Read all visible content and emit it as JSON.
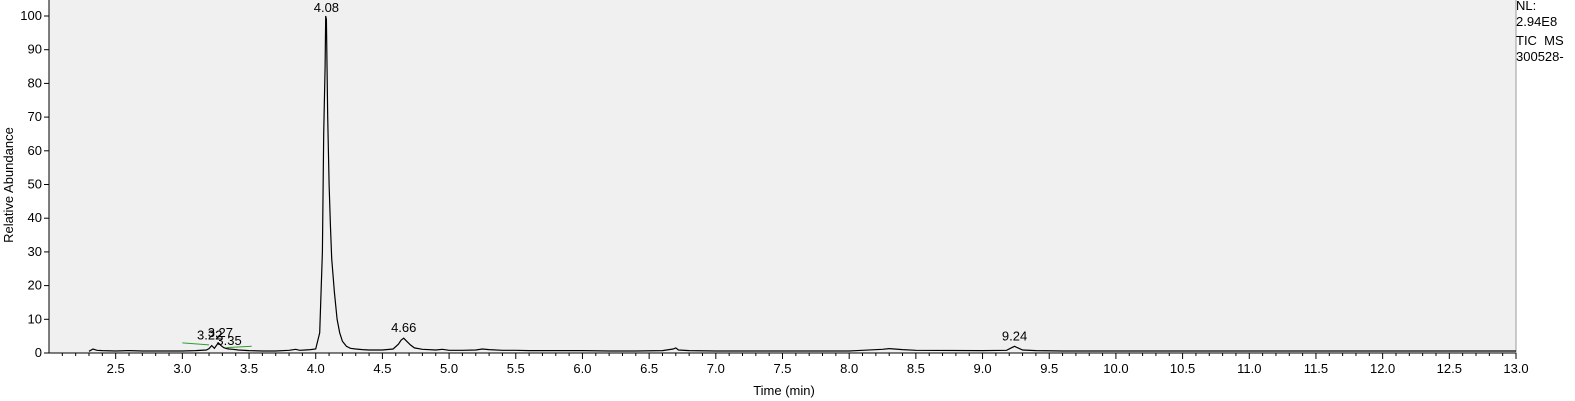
{
  "chart_data": {
    "type": "line",
    "title": "",
    "xlabel": "Time (min)",
    "ylabel": "Relative Abundance",
    "xlim": [
      2.0,
      13.0
    ],
    "ylim": [
      0,
      100
    ],
    "x_ticks": [
      2.5,
      3.0,
      3.5,
      4.0,
      4.5,
      5.0,
      5.5,
      6.0,
      6.5,
      7.0,
      7.5,
      8.0,
      8.5,
      9.0,
      9.5,
      10.0,
      10.5,
      11.0,
      11.5,
      12.0,
      12.5,
      13.0
    ],
    "x_tick_labels": [
      "2.5",
      "3.0",
      "3.5",
      "4.0",
      "4.5",
      "5.0",
      "5.5",
      "6.0",
      "6.5",
      "7.0",
      "7.5",
      "8.0",
      "8.5",
      "9.0",
      "9.5",
      "10.0",
      "10.5",
      "11.0",
      "11.5",
      "12.0",
      "12.5",
      "13.0"
    ],
    "y_ticks": [
      0,
      10,
      20,
      30,
      40,
      50,
      60,
      70,
      80,
      90,
      100
    ],
    "y_tick_labels": [
      "0",
      "10",
      "20",
      "30",
      "40",
      "50",
      "60",
      "70",
      "80",
      "90",
      "100"
    ],
    "grid": false,
    "background_color": "#f0f0f0",
    "line_color": "#000000",
    "baseline_color": "#2e9e2e",
    "series": [
      {
        "x": [
          2.3,
          2.33,
          2.36,
          2.4,
          2.5,
          2.6,
          2.7,
          2.8,
          2.9,
          3.0,
          3.1,
          3.18,
          3.2,
          3.22,
          3.24,
          3.26,
          3.27,
          3.29,
          3.31,
          3.33,
          3.35,
          3.38,
          3.42,
          3.5,
          3.6,
          3.7,
          3.8,
          3.85,
          3.88,
          3.92,
          3.96,
          4.0,
          4.03,
          4.05,
          4.06,
          4.07,
          4.075,
          4.08,
          4.09,
          4.1,
          4.11,
          4.12,
          4.14,
          4.16,
          4.18,
          4.2,
          4.23,
          4.26,
          4.3,
          4.35,
          4.4,
          4.5,
          4.58,
          4.62,
          4.64,
          4.66,
          4.68,
          4.71,
          4.74,
          4.8,
          4.9,
          4.95,
          5.0,
          5.1,
          5.2,
          5.25,
          5.3,
          5.4,
          5.5,
          5.6,
          5.8,
          6.0,
          6.2,
          6.4,
          6.6,
          6.68,
          6.7,
          6.72,
          6.8,
          7.0,
          7.5,
          8.0,
          8.1,
          8.25,
          8.3,
          8.4,
          8.5,
          9.0,
          9.18,
          9.22,
          9.24,
          9.26,
          9.3,
          9.4,
          9.6,
          10.0,
          10.5,
          11.0,
          11.5,
          12.0,
          12.5,
          13.0
        ],
        "values": [
          0.5,
          1.2,
          0.8,
          0.7,
          0.6,
          0.7,
          0.6,
          0.6,
          0.6,
          0.6,
          0.7,
          0.9,
          1.3,
          2.2,
          1.4,
          2.5,
          3.0,
          2.2,
          1.6,
          1.3,
          1.2,
          1.1,
          0.9,
          0.7,
          0.6,
          0.6,
          0.8,
          1.1,
          0.8,
          0.9,
          1.0,
          1.2,
          6.0,
          30.0,
          65.0,
          85.0,
          100.0,
          99.0,
          70.0,
          50.0,
          38.0,
          28.0,
          18.0,
          10.0,
          6.0,
          3.5,
          2.0,
          1.4,
          1.2,
          1.0,
          0.9,
          0.9,
          1.2,
          2.6,
          3.8,
          4.4,
          3.6,
          2.4,
          1.5,
          1.1,
          0.9,
          1.1,
          0.8,
          0.8,
          0.9,
          1.2,
          1.0,
          0.8,
          0.8,
          0.7,
          0.7,
          0.7,
          0.6,
          0.6,
          0.7,
          1.2,
          1.5,
          0.9,
          0.7,
          0.6,
          0.6,
          0.6,
          0.8,
          1.1,
          1.3,
          1.0,
          0.8,
          0.7,
          0.8,
          1.6,
          2.0,
          1.6,
          0.9,
          0.7,
          0.6,
          0.6,
          0.6,
          0.6,
          0.6,
          0.6,
          0.6,
          0.6
        ]
      }
    ],
    "peak_labels": [
      {
        "text": "3.22",
        "x": 3.22,
        "y": 2.2
      },
      {
        "text": "3.27",
        "x": 3.27,
        "y": 3.0
      },
      {
        "text": "3.35",
        "x": 3.35,
        "y": 1.2
      },
      {
        "text": "4.08",
        "x": 4.08,
        "y": 100.0
      },
      {
        "text": "4.66",
        "x": 4.66,
        "y": 4.4
      },
      {
        "text": "9.24",
        "x": 9.24,
        "y": 2.0
      }
    ],
    "baselines": [
      {
        "x": [
          3.0,
          3.2
        ],
        "y": [
          3.0,
          2.4
        ]
      },
      {
        "x": [
          3.33,
          3.52
        ],
        "y": [
          1.6,
          2.0
        ]
      }
    ]
  },
  "info": {
    "lines": [
      "NL:",
      "2.94E8",
      "TIC  MS",
      "300528-"
    ]
  }
}
